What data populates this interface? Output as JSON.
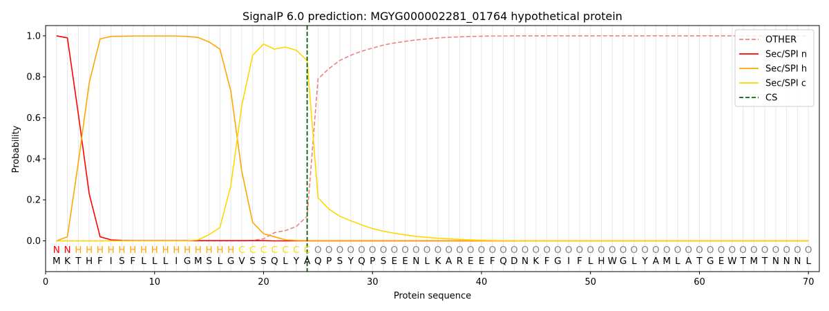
{
  "chart_data": {
    "type": "line",
    "title": "SignalP 6.0 prediction: MGYG000002281_01764 hypothetical protein",
    "xlabel": "Protein sequence",
    "ylabel": "Probability",
    "xlim": [
      0,
      71
    ],
    "ylim": [
      -0.15,
      1.05
    ],
    "xticks": [
      0,
      10,
      20,
      30,
      40,
      50,
      60,
      70
    ],
    "yticks": [
      0.0,
      0.2,
      0.4,
      0.6,
      0.8,
      1.0
    ],
    "xtick_labels": [
      "0",
      "10",
      "20",
      "30",
      "40",
      "50",
      "60",
      "70"
    ],
    "ytick_labels": [
      "0.0",
      "0.2",
      "0.4",
      "0.6",
      "0.8",
      "1.0"
    ],
    "legend_position": "top-right",
    "x": [
      1,
      2,
      3,
      4,
      5,
      6,
      7,
      8,
      9,
      10,
      11,
      12,
      13,
      14,
      15,
      16,
      17,
      18,
      19,
      20,
      21,
      22,
      23,
      24,
      25,
      26,
      27,
      28,
      29,
      30,
      31,
      32,
      33,
      34,
      35,
      36,
      37,
      38,
      39,
      40,
      41,
      42,
      43,
      44,
      45,
      46,
      47,
      48,
      49,
      50,
      51,
      52,
      53,
      54,
      55,
      56,
      57,
      58,
      59,
      60,
      61,
      62,
      63,
      64,
      65,
      66,
      67,
      68,
      69,
      70
    ],
    "sequence": [
      "M",
      "K",
      "T",
      "H",
      "F",
      "I",
      "S",
      "F",
      "L",
      "L",
      "L",
      "I",
      "G",
      "M",
      "S",
      "L",
      "G",
      "V",
      "S",
      "S",
      "Q",
      "L",
      "Y",
      "A",
      "Q",
      "P",
      "S",
      "Y",
      "Q",
      "P",
      "S",
      "E",
      "E",
      "N",
      "L",
      "K",
      "A",
      "R",
      "E",
      "E",
      "F",
      "Q",
      "D",
      "N",
      "K",
      "F",
      "G",
      "I",
      "F",
      "L",
      "H",
      "W",
      "G",
      "L",
      "Y",
      "A",
      "M",
      "L",
      "A",
      "T",
      "G",
      "E",
      "W",
      "T",
      "M",
      "T",
      "N",
      "N",
      "N",
      "L"
    ],
    "labels": [
      "N",
      "N",
      "H",
      "H",
      "H",
      "H",
      "H",
      "H",
      "H",
      "H",
      "H",
      "H",
      "H",
      "H",
      "H",
      "H",
      "H",
      "C",
      "C",
      "C",
      "C",
      "C",
      "C",
      "C",
      "O",
      "O",
      "O",
      "O",
      "O",
      "O",
      "O",
      "O",
      "O",
      "O",
      "O",
      "O",
      "O",
      "O",
      "O",
      "O",
      "O",
      "O",
      "O",
      "O",
      "O",
      "O",
      "O",
      "O",
      "O",
      "O",
      "O",
      "O",
      "O",
      "O",
      "O",
      "O",
      "O",
      "O",
      "O",
      "O",
      "O",
      "O",
      "O",
      "O",
      "O",
      "O",
      "O",
      "O",
      "O",
      "O"
    ],
    "label_colors": {
      "N": "#ff0000",
      "H": "#ffa500",
      "C": "#ffd700",
      "O": "#808080"
    },
    "series": [
      {
        "name": "OTHER",
        "color": "#f08080",
        "dash": "dashed",
        "values": [
          0,
          0,
          0,
          0,
          0,
          0,
          0,
          0,
          0,
          0,
          0,
          0,
          0,
          0,
          0,
          0,
          0,
          0,
          0.002,
          0.01,
          0.04,
          0.05,
          0.07,
          0.12,
          0.79,
          0.84,
          0.88,
          0.905,
          0.925,
          0.94,
          0.955,
          0.965,
          0.973,
          0.98,
          0.985,
          0.99,
          0.993,
          0.995,
          0.997,
          0.998,
          0.999,
          0.999,
          1,
          1,
          1,
          1,
          1,
          1,
          1,
          1,
          1,
          1,
          1,
          1,
          1,
          1,
          1,
          1,
          1,
          1,
          1,
          1,
          1,
          1,
          1,
          1,
          1,
          1,
          1,
          1
        ]
      },
      {
        "name": "Sec/SPI n",
        "color": "#ff0000",
        "dash": "solid",
        "values": [
          1.0,
          0.99,
          0.62,
          0.23,
          0.02,
          0.005,
          0.002,
          0.001,
          0.001,
          0.001,
          0.001,
          0.001,
          0.001,
          0.001,
          0.001,
          0.001,
          0.001,
          0.001,
          0.001,
          0.001,
          0,
          0,
          0,
          0,
          0,
          0,
          0,
          0,
          0,
          0,
          0,
          0,
          0,
          0,
          0,
          0,
          0,
          0,
          0,
          0,
          0,
          0,
          0,
          0,
          0,
          0,
          0,
          0,
          0,
          0,
          0,
          0,
          0,
          0,
          0,
          0,
          0,
          0,
          0,
          0,
          0,
          0,
          0,
          0,
          0,
          0,
          0,
          0,
          0,
          0
        ]
      },
      {
        "name": "Sec/SPI h",
        "color": "#ffa500",
        "dash": "solid",
        "values": [
          0,
          0.02,
          0.38,
          0.77,
          0.985,
          0.997,
          0.998,
          0.999,
          0.999,
          0.999,
          0.999,
          0.999,
          0.997,
          0.992,
          0.97,
          0.935,
          0.73,
          0.34,
          0.09,
          0.035,
          0.02,
          0.005,
          0.002,
          0.001,
          0.001,
          0.001,
          0.001,
          0.001,
          0.001,
          0.001,
          0.001,
          0.001,
          0.001,
          0.001,
          0.001,
          0.001,
          0.001,
          0.001,
          0.001,
          0,
          0,
          0,
          0,
          0,
          0,
          0,
          0,
          0,
          0,
          0,
          0,
          0,
          0,
          0,
          0,
          0,
          0,
          0,
          0,
          0,
          0,
          0,
          0,
          0,
          0,
          0,
          0,
          0,
          0,
          0
        ]
      },
      {
        "name": "Sec/SPI c",
        "color": "#ffd700",
        "dash": "solid",
        "values": [
          0,
          0,
          0,
          0,
          0,
          0,
          0,
          0,
          0,
          0,
          0,
          0,
          0,
          0.005,
          0.03,
          0.065,
          0.27,
          0.66,
          0.905,
          0.96,
          0.935,
          0.945,
          0.93,
          0.88,
          0.21,
          0.155,
          0.12,
          0.098,
          0.078,
          0.06,
          0.047,
          0.037,
          0.029,
          0.022,
          0.017,
          0.013,
          0.01,
          0.007,
          0.005,
          0.003,
          0.002,
          0.001,
          0.001,
          0,
          0,
          0,
          0,
          0,
          0,
          0,
          0,
          0,
          0,
          0,
          0,
          0,
          0,
          0,
          0,
          0,
          0,
          0,
          0,
          0,
          0,
          0,
          0,
          0,
          0,
          0
        ]
      }
    ],
    "cleavage_site": {
      "name": "CS",
      "x": 24,
      "color": "#006400",
      "dash": "dashed"
    }
  }
}
